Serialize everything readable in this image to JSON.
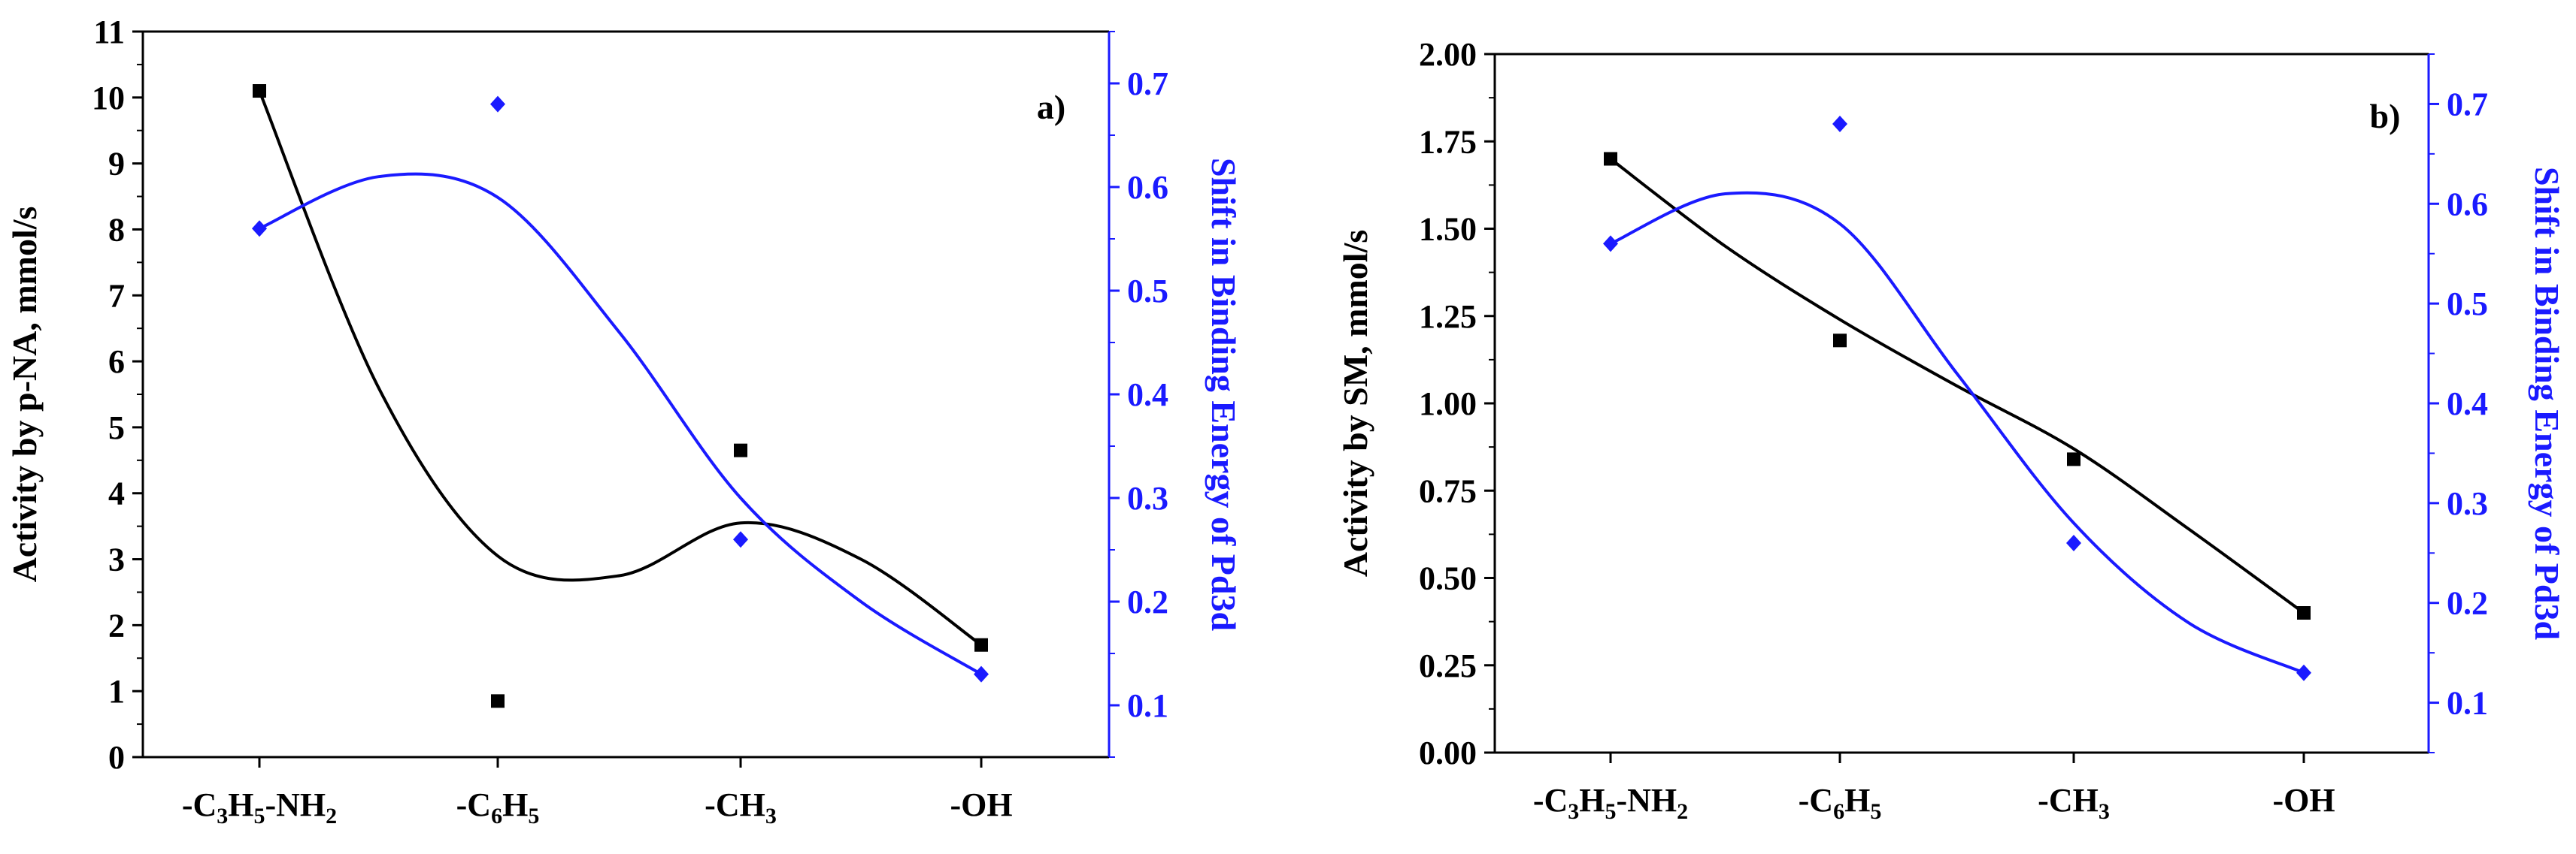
{
  "chart_data": [
    {
      "type": "scatter",
      "panel_label": "a)",
      "categories": [
        "-C3H5-NH2",
        "-C6H5",
        "-CH3",
        "-OH"
      ],
      "category_labels": [
        [
          {
            "t": "-C",
            "s": false
          },
          {
            "t": "3",
            "s": true
          },
          {
            "t": "H",
            "s": false
          },
          {
            "t": "5",
            "s": true
          },
          {
            "t": "-NH",
            "s": false
          },
          {
            "t": "2",
            "s": true
          }
        ],
        [
          {
            "t": "-C",
            "s": false
          },
          {
            "t": "6",
            "s": true
          },
          {
            "t": "H",
            "s": false
          },
          {
            "t": "5",
            "s": true
          }
        ],
        [
          {
            "t": "-CH",
            "s": false
          },
          {
            "t": "3",
            "s": true
          }
        ],
        [
          {
            "t": "-OH",
            "s": false
          }
        ]
      ],
      "ylabel": "Activity by p-NA, mmol/s",
      "y2label": "Shift in Binding Energy of Pd3d",
      "ylim": [
        0,
        11
      ],
      "yticks": [
        0,
        1,
        2,
        3,
        4,
        5,
        6,
        7,
        8,
        9,
        10,
        11
      ],
      "ytick_labels": [
        "0",
        "1",
        "2",
        "3",
        "4",
        "5",
        "6",
        "7",
        "8",
        "9",
        "10",
        "11"
      ],
      "y2lim": [
        0.05,
        0.75
      ],
      "y2ticks": [
        0.1,
        0.2,
        0.3,
        0.4,
        0.5,
        0.6,
        0.7
      ],
      "y2tick_labels": [
        "0.1",
        "0.2",
        "0.3",
        "0.4",
        "0.5",
        "0.6",
        "0.7"
      ],
      "series": [
        {
          "name": "Activity",
          "axis": "left",
          "color": "#000000",
          "marker": "square",
          "values": [
            10.1,
            0.85,
            4.65,
            1.7
          ],
          "fit_x": [
            0,
            0.5,
            1,
            1.5,
            2,
            2.5,
            3
          ],
          "fit_y": [
            10.1,
            5.6,
            3.05,
            2.75,
            3.55,
            3.0,
            1.7
          ]
        },
        {
          "name": "Shift",
          "axis": "right",
          "color": "#1a1aff",
          "marker": "diamond",
          "values": [
            0.56,
            0.68,
            0.26,
            0.13
          ],
          "fit_x": [
            0,
            0.5,
            1,
            1.5,
            2,
            2.5,
            3
          ],
          "fit_y": [
            0.56,
            0.61,
            0.59,
            0.46,
            0.3,
            0.2,
            0.13
          ]
        }
      ]
    },
    {
      "type": "scatter",
      "panel_label": "b)",
      "categories": [
        "-C3H5-NH2",
        "-C6H5",
        "-CH3",
        "-OH"
      ],
      "category_labels": [
        [
          {
            "t": "-C",
            "s": false
          },
          {
            "t": "3",
            "s": true
          },
          {
            "t": "H",
            "s": false
          },
          {
            "t": "5",
            "s": true
          },
          {
            "t": "-NH",
            "s": false
          },
          {
            "t": "2",
            "s": true
          }
        ],
        [
          {
            "t": "-C",
            "s": false
          },
          {
            "t": "6",
            "s": true
          },
          {
            "t": "H",
            "s": false
          },
          {
            "t": "5",
            "s": true
          }
        ],
        [
          {
            "t": "-CH",
            "s": false
          },
          {
            "t": "3",
            "s": true
          }
        ],
        [
          {
            "t": "-OH",
            "s": false
          }
        ]
      ],
      "ylabel": "Activity by SM, mmol/s",
      "y2label": "Shift in Binding Energy of Pd3d",
      "ylim": [
        0,
        2.0
      ],
      "yticks": [
        0,
        0.25,
        0.5,
        0.75,
        1.0,
        1.25,
        1.5,
        1.75,
        2.0
      ],
      "ytick_labels": [
        "0.00",
        "0.25",
        "0.50",
        "0.75",
        "1.00",
        "1.25",
        "1.50",
        "1.75",
        "2.00"
      ],
      "y2lim": [
        0.05,
        0.75
      ],
      "y2ticks": [
        0.1,
        0.2,
        0.3,
        0.4,
        0.5,
        0.6,
        0.7
      ],
      "y2tick_labels": [
        "0.1",
        "0.2",
        "0.3",
        "0.4",
        "0.5",
        "0.6",
        "0.7"
      ],
      "series": [
        {
          "name": "Activity",
          "axis": "left",
          "color": "#000000",
          "marker": "square",
          "values": [
            1.7,
            1.18,
            0.84,
            0.4
          ],
          "fit_x": [
            0,
            0.5,
            1,
            1.5,
            2,
            2.5,
            3
          ],
          "fit_y": [
            1.7,
            1.45,
            1.24,
            1.05,
            0.87,
            0.64,
            0.4
          ]
        },
        {
          "name": "Shift",
          "axis": "right",
          "color": "#1a1aff",
          "marker": "diamond",
          "values": [
            0.56,
            0.68,
            0.26,
            0.13
          ],
          "fit_x": [
            0,
            0.5,
            1,
            1.5,
            2,
            2.5,
            3
          ],
          "fit_y": [
            0.56,
            0.61,
            0.58,
            0.43,
            0.28,
            0.18,
            0.13
          ]
        }
      ]
    }
  ]
}
